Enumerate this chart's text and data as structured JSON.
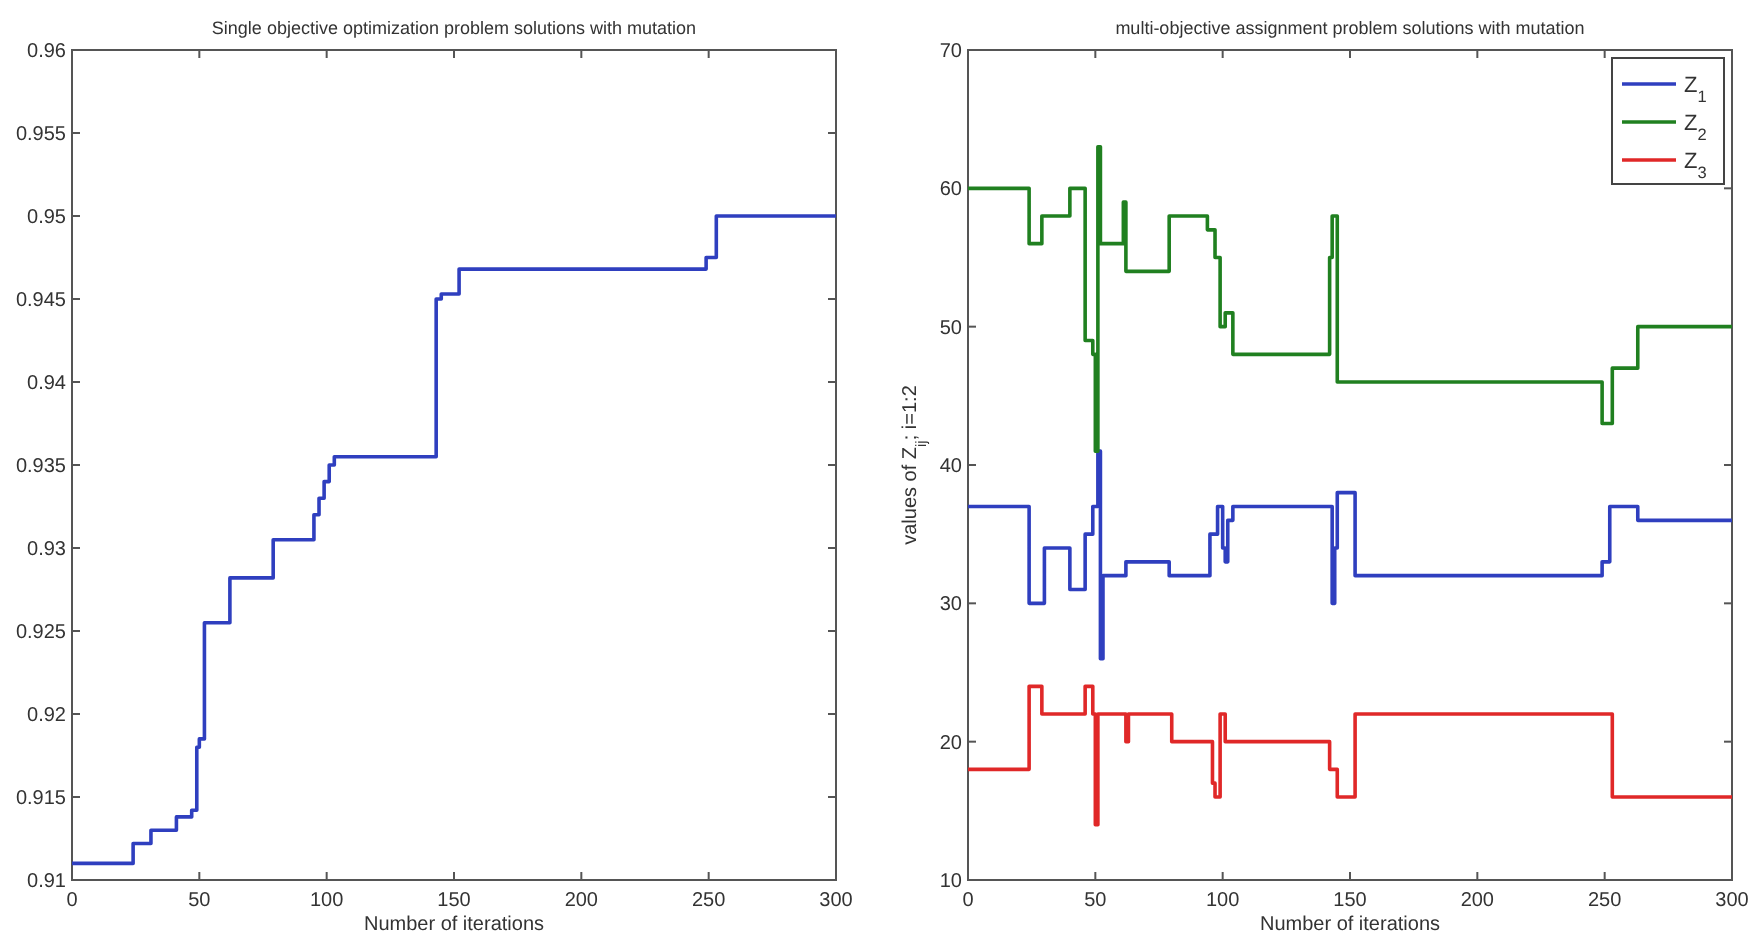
{
  "chart_data": [
    {
      "type": "step",
      "title": "Single objective optimization problem solutions with mutation",
      "xlabel": "Number of iterations",
      "xlim": [
        0,
        300
      ],
      "xticks": [
        0,
        50,
        100,
        150,
        200,
        250,
        300
      ],
      "ylim": [
        0.91,
        0.96
      ],
      "yticks": [
        0.91,
        0.915,
        0.92,
        0.925,
        0.93,
        0.935,
        0.94,
        0.945,
        0.95,
        0.955,
        0.96
      ],
      "grid": false,
      "legend": false,
      "series": [
        {
          "color": "#2f3fbf",
          "x": [
            0,
            24,
            31,
            41,
            47,
            49,
            50,
            52,
            62,
            79,
            95,
            97,
            99,
            101,
            103,
            142,
            143,
            145,
            152,
            249,
            252,
            253,
            300
          ],
          "values": [
            0.911,
            0.9122,
            0.913,
            0.9138,
            0.9142,
            0.918,
            0.9185,
            0.9255,
            0.9282,
            0.9305,
            0.932,
            0.933,
            0.934,
            0.935,
            0.9355,
            0.9355,
            0.945,
            0.9453,
            0.9468,
            0.9475,
            0.9475,
            0.95,
            0.95
          ]
        }
      ]
    },
    {
      "type": "step",
      "title": "multi-objective assignment problem solutions with mutation",
      "xlabel": "Number of iterations",
      "ylabel": "values of Z$_{ij}$; i=1:2",
      "xlim": [
        0,
        300
      ],
      "xticks": [
        0,
        50,
        100,
        150,
        200,
        250,
        300
      ],
      "ylim": [
        10,
        70
      ],
      "yticks": [
        10,
        20,
        30,
        40,
        50,
        60,
        70
      ],
      "grid": false,
      "legend": "top right",
      "series": [
        {
          "name": "Z$_{1}$",
          "color": "#2f3fbf",
          "x": [
            0,
            24,
            30,
            40,
            46,
            49,
            51,
            52,
            53,
            62,
            79,
            95,
            98,
            100,
            101,
            102,
            104,
            143,
            144,
            145,
            152,
            249,
            252,
            263,
            300
          ],
          "values": [
            37,
            30,
            34,
            31,
            35,
            37,
            41,
            26,
            32,
            33,
            32,
            35,
            37,
            34,
            33,
            36,
            37,
            30,
            34,
            38,
            32,
            33,
            37,
            36,
            36
          ]
        },
        {
          "name": "Z$_{2}$",
          "color": "#208020",
          "x": [
            0,
            24,
            29,
            40,
            46,
            49,
            50,
            51,
            52,
            61,
            62,
            79,
            94,
            97,
            99,
            101,
            104,
            142,
            143,
            145,
            249,
            253,
            263,
            300
          ],
          "values": [
            60,
            56,
            58,
            60,
            49,
            48,
            41,
            63,
            56,
            59,
            54,
            58,
            57,
            55,
            50,
            51,
            48,
            55,
            58,
            46,
            43,
            47,
            50,
            50
          ]
        },
        {
          "name": "Z$_{3}$",
          "color": "#e02828",
          "x": [
            0,
            24,
            29,
            46,
            49,
            50,
            51,
            62,
            63,
            80,
            96,
            97,
            99,
            101,
            142,
            145,
            152,
            253,
            300
          ],
          "values": [
            18,
            24,
            22,
            24,
            22,
            14,
            22,
            20,
            22,
            20,
            17,
            16,
            22,
            20,
            18,
            16,
            22,
            16,
            16
          ]
        }
      ]
    }
  ]
}
